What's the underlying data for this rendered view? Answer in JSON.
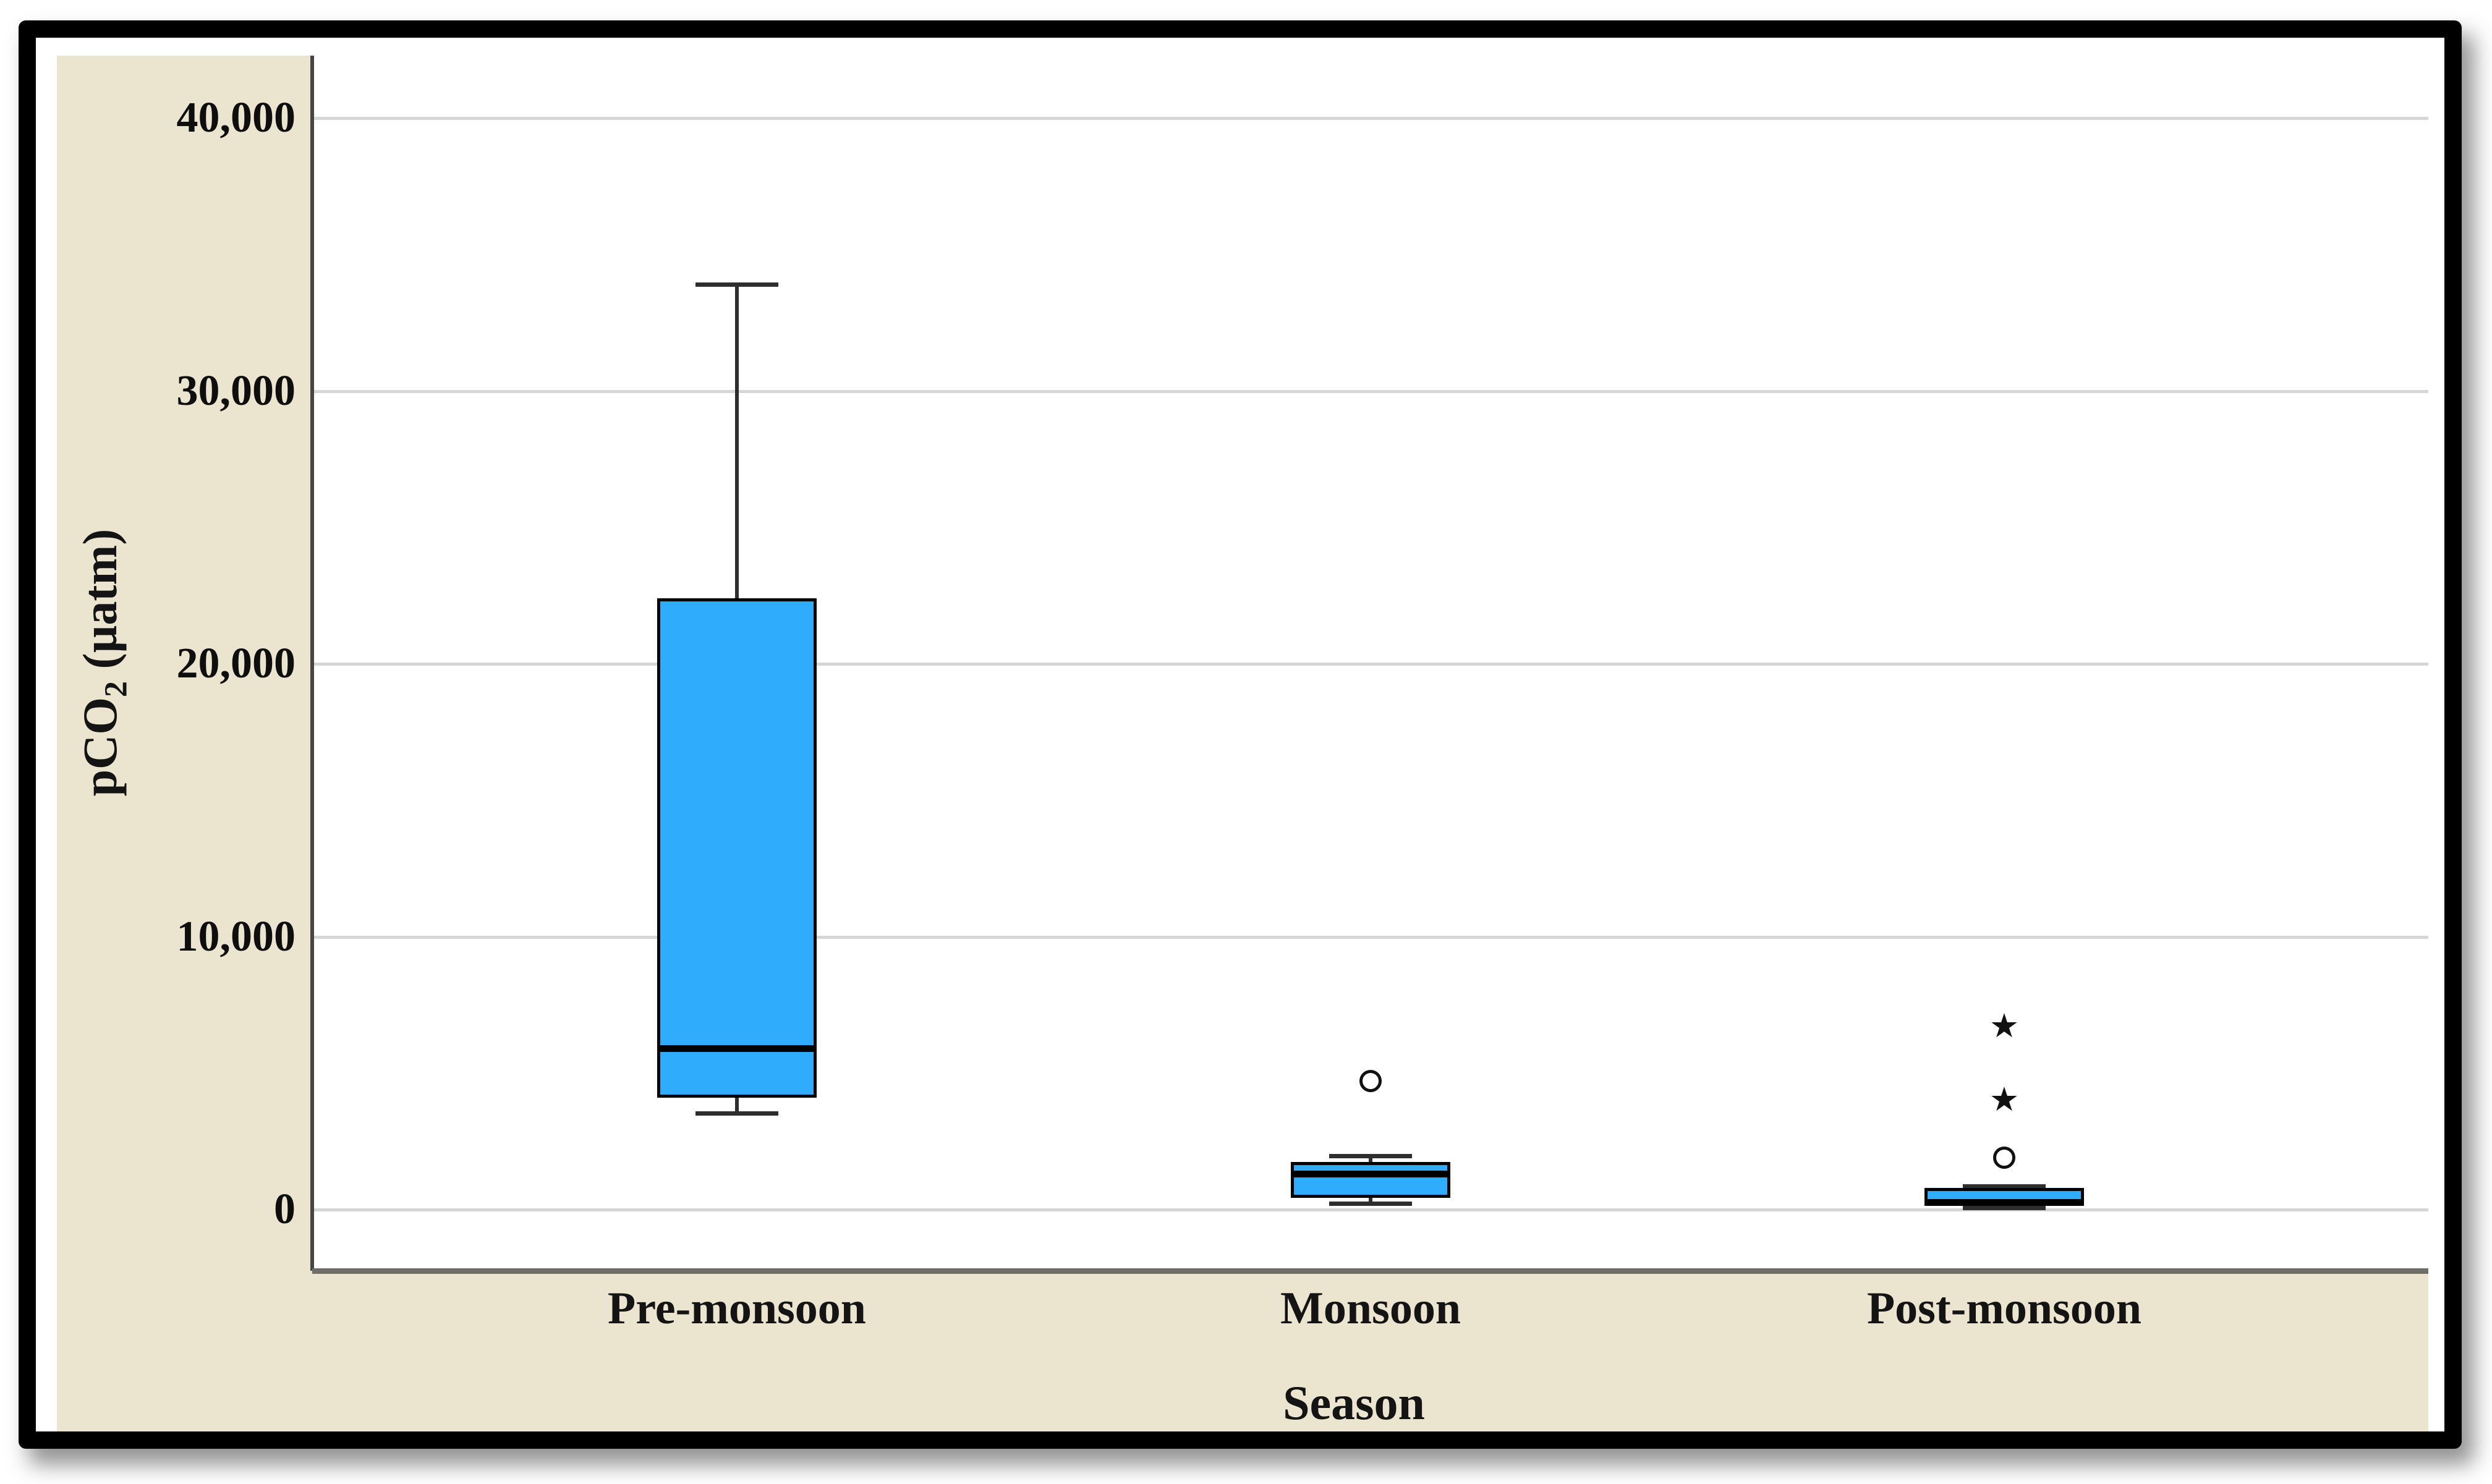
{
  "chart_data": {
    "type": "boxplot",
    "title": "",
    "xlabel": "Season",
    "ylabel": "pCO2 (µatm)",
    "ylabel_parts": {
      "pre": "pCO",
      "sub": "2",
      "post": " (µatm)"
    },
    "ylim": [
      0,
      40000
    ],
    "grid": true,
    "legend": null,
    "yticks": [
      {
        "value": 0,
        "label": "0"
      },
      {
        "value": 10000,
        "label": "10,000"
      },
      {
        "value": 20000,
        "label": "20,000"
      },
      {
        "value": 30000,
        "label": "30,000"
      },
      {
        "value": 40000,
        "label": "40,000"
      }
    ],
    "categories": [
      "Pre-monsoon",
      "Monsoon",
      "Post-monsoon"
    ],
    "series": [
      {
        "name": "Pre-monsoon",
        "whisker_low": 3500,
        "q1": 4100,
        "median": 5900,
        "q3": 22400,
        "whisker_high": 33900,
        "outliers": [],
        "extremes": []
      },
      {
        "name": "Monsoon",
        "whisker_low": 200,
        "q1": 430,
        "median": 1300,
        "q3": 1750,
        "whisker_high": 1970,
        "outliers": [
          4700
        ],
        "extremes": []
      },
      {
        "name": "Post-monsoon",
        "whisker_low": 50,
        "q1": 130,
        "median": 250,
        "q3": 800,
        "whisker_high": 860,
        "outliers": [
          1900
        ],
        "extremes": [
          4000,
          6700
        ]
      }
    ],
    "colors": {
      "frame": "#000000",
      "panel_bg": "#ebe5cf",
      "plot_bg": "#ffffff",
      "gridline": "#d6d6d6",
      "y_axis_line": "#454545",
      "x_axis_line": "#6f6f67",
      "box_fill": "#2fadfc",
      "box_stroke": "#000000",
      "median": "#000000",
      "whisker": "#2e2e2e",
      "outlier": "#111111",
      "text": "#141414"
    }
  }
}
